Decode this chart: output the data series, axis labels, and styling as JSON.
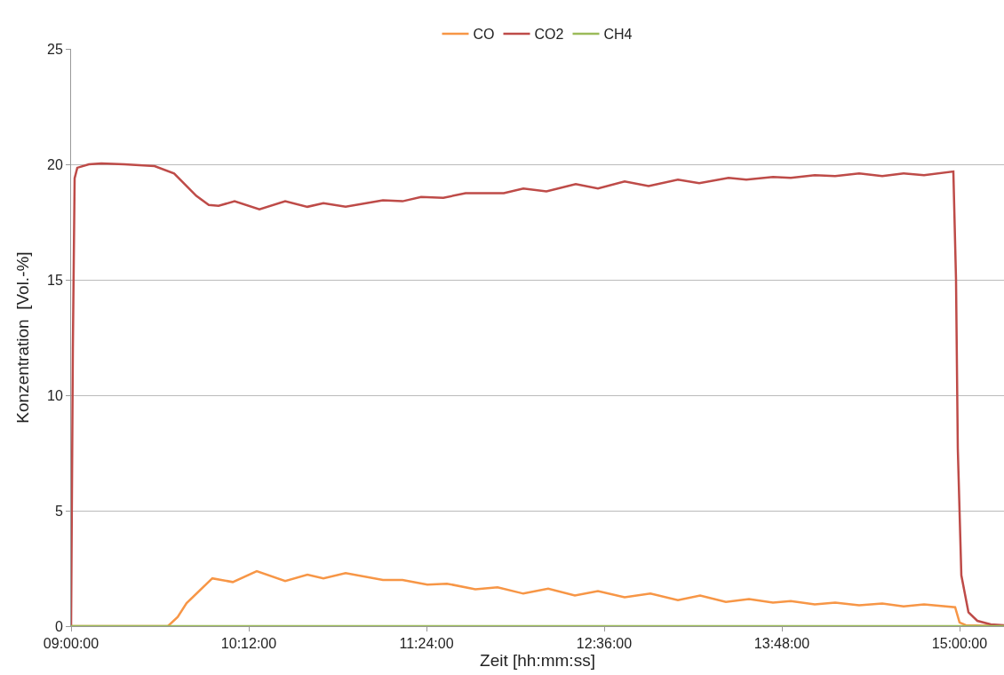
{
  "chart_data": {
    "type": "line",
    "xlabel": "Zeit [hh:mm:ss]",
    "ylabel": "Konzentration  [Vol.-%]",
    "xlim": [
      9.0,
      15.3
    ],
    "xticks": [
      {
        "value": 9.0,
        "label": "09:00:00"
      },
      {
        "value": 10.2,
        "label": "10:12:00"
      },
      {
        "value": 11.4,
        "label": "11:24:00"
      },
      {
        "value": 12.6,
        "label": "12:36:00"
      },
      {
        "value": 13.8,
        "label": "13:48:00"
      },
      {
        "value": 15.0,
        "label": "15:00:00"
      }
    ],
    "ylim": [
      0,
      25
    ],
    "yticks": [
      0,
      5,
      10,
      15,
      20,
      25
    ],
    "grid": "y",
    "legend": "top",
    "marker": "none",
    "line_style": "solid",
    "series": [
      {
        "name": "CO",
        "color": "#f79646",
        "x": [
          9.0,
          9.654,
          9.72,
          9.78,
          9.954,
          10.092,
          10.254,
          10.446,
          10.596,
          10.704,
          10.854,
          11.106,
          11.238,
          11.406,
          11.538,
          11.73,
          11.88,
          12.054,
          12.222,
          12.402,
          12.558,
          12.738,
          12.912,
          13.098,
          13.248,
          13.422,
          13.578,
          13.74,
          13.86,
          14.022,
          14.16,
          14.322,
          14.478,
          14.622,
          14.76,
          14.97,
          15.0,
          15.042,
          15.3
        ],
        "values": [
          0,
          0.0,
          0.4,
          1.0,
          2.07,
          1.91,
          2.38,
          1.95,
          2.23,
          2.07,
          2.3,
          2.0,
          2.0,
          1.8,
          1.84,
          1.6,
          1.68,
          1.41,
          1.62,
          1.33,
          1.52,
          1.25,
          1.41,
          1.13,
          1.33,
          1.05,
          1.17,
          1.02,
          1.09,
          0.94,
          1.02,
          0.9,
          0.98,
          0.86,
          0.94,
          0.82,
          0.16,
          0.04,
          0
        ]
      },
      {
        "name": "CO2",
        "color": "#be4b48",
        "x": [
          9.0,
          9.012,
          9.024,
          9.042,
          9.12,
          9.204,
          9.36,
          9.564,
          9.696,
          9.846,
          9.93,
          9.996,
          10.104,
          10.272,
          10.446,
          10.596,
          10.704,
          10.854,
          11.106,
          11.238,
          11.364,
          11.514,
          11.664,
          11.922,
          12.054,
          12.21,
          12.408,
          12.558,
          12.738,
          12.9,
          13.098,
          13.242,
          13.44,
          13.56,
          13.74,
          13.86,
          14.022,
          14.16,
          14.322,
          14.478,
          14.622,
          14.76,
          14.958,
          14.976,
          14.988,
          15.012,
          15.06,
          15.12,
          15.21,
          15.3
        ],
        "values": [
          0,
          12,
          19.4,
          19.85,
          20.0,
          20.04,
          20.0,
          19.92,
          19.6,
          18.63,
          18.24,
          18.2,
          18.4,
          18.05,
          18.4,
          18.16,
          18.32,
          18.16,
          18.44,
          18.4,
          18.59,
          18.55,
          18.75,
          18.75,
          18.95,
          18.83,
          19.14,
          18.95,
          19.26,
          19.06,
          19.34,
          19.18,
          19.41,
          19.34,
          19.45,
          19.41,
          19.53,
          19.49,
          19.61,
          19.49,
          19.61,
          19.53,
          19.69,
          15,
          7.7,
          2.2,
          0.6,
          0.23,
          0.08,
          0.04
        ]
      },
      {
        "name": "CH4",
        "color": "#9bbb59",
        "x": [
          9.0,
          15.3
        ],
        "values": [
          0,
          0
        ]
      }
    ]
  }
}
